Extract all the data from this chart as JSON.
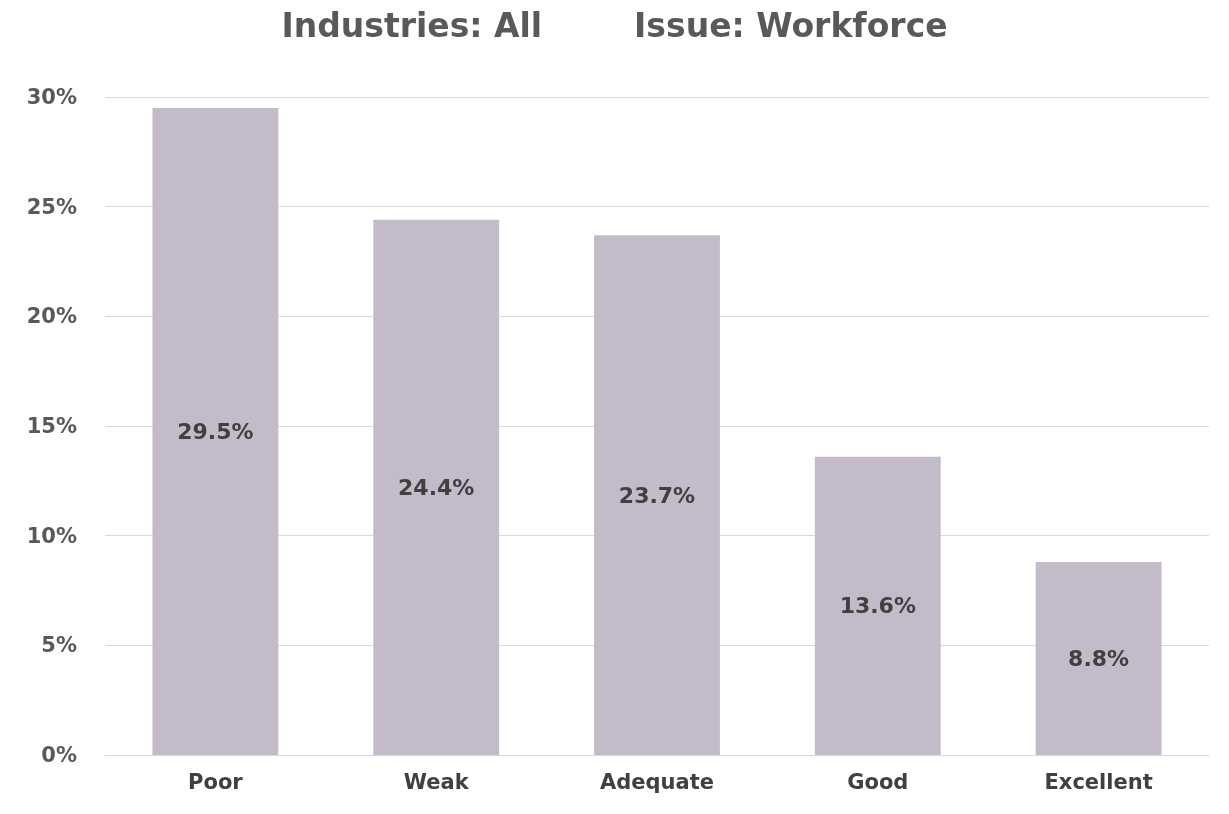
{
  "chart_data": {
    "type": "bar",
    "title": "Industries: All        Issue: Workforce",
    "categories": [
      "Poor",
      "Weak",
      "Adequate",
      "Good",
      "Excellent"
    ],
    "values": [
      29.5,
      24.4,
      23.7,
      13.6,
      8.8
    ],
    "value_labels": [
      "29.5%",
      "24.4%",
      "23.7%",
      "13.6%",
      "8.8%"
    ],
    "color": "#c3bbc9",
    "ylim": [
      0,
      30
    ],
    "yticks": [
      {
        "value": 0,
        "label": "0%"
      },
      {
        "value": 5,
        "label": "5%"
      },
      {
        "value": 10,
        "label": "10%"
      },
      {
        "value": 15,
        "label": "15%"
      },
      {
        "value": 20,
        "label": "20%"
      },
      {
        "value": 25,
        "label": "25%"
      },
      {
        "value": 30,
        "label": "30%"
      }
    ],
    "grid": true
  }
}
